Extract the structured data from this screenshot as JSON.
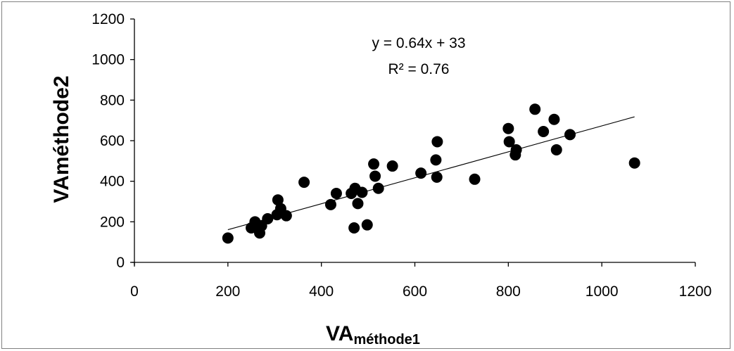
{
  "chart_data": {
    "type": "scatter",
    "xlabel": "VA",
    "xlabel_subscript": "méthode1",
    "ylabel": "VAméthode2",
    "xlim": [
      0,
      1200
    ],
    "ylim": [
      0,
      1200
    ],
    "x_ticks": [
      "0",
      "200",
      "400",
      "600",
      "800",
      "1000",
      "1200"
    ],
    "y_ticks": [
      "0",
      "200",
      "400",
      "600",
      "800",
      "1000",
      "1200"
    ],
    "grid": false,
    "legend": "none",
    "colors": {
      "points": "#000000",
      "trendline": "#000000",
      "axis": "#000000",
      "frame": "#808080"
    },
    "trendline": {
      "slope": 0.64,
      "intercept": 33,
      "x_range": [
        200,
        1070
      ],
      "equation": "y = 0.64x + 33",
      "r_squared": "R² = 0.76"
    },
    "points": [
      {
        "x": 200,
        "y": 120
      },
      {
        "x": 250,
        "y": 170
      },
      {
        "x": 258,
        "y": 200
      },
      {
        "x": 268,
        "y": 145
      },
      {
        "x": 272,
        "y": 180
      },
      {
        "x": 285,
        "y": 215
      },
      {
        "x": 305,
        "y": 235
      },
      {
        "x": 307,
        "y": 308
      },
      {
        "x": 313,
        "y": 265
      },
      {
        "x": 325,
        "y": 230
      },
      {
        "x": 363,
        "y": 395
      },
      {
        "x": 420,
        "y": 285
      },
      {
        "x": 432,
        "y": 340
      },
      {
        "x": 464,
        "y": 340
      },
      {
        "x": 470,
        "y": 170
      },
      {
        "x": 472,
        "y": 365
      },
      {
        "x": 478,
        "y": 290
      },
      {
        "x": 487,
        "y": 345
      },
      {
        "x": 498,
        "y": 185
      },
      {
        "x": 512,
        "y": 485
      },
      {
        "x": 515,
        "y": 425
      },
      {
        "x": 522,
        "y": 365
      },
      {
        "x": 552,
        "y": 475
      },
      {
        "x": 613,
        "y": 440
      },
      {
        "x": 645,
        "y": 505
      },
      {
        "x": 647,
        "y": 420
      },
      {
        "x": 648,
        "y": 595
      },
      {
        "x": 728,
        "y": 410
      },
      {
        "x": 800,
        "y": 660
      },
      {
        "x": 802,
        "y": 595
      },
      {
        "x": 815,
        "y": 530
      },
      {
        "x": 817,
        "y": 555
      },
      {
        "x": 857,
        "y": 755
      },
      {
        "x": 875,
        "y": 645
      },
      {
        "x": 898,
        "y": 705
      },
      {
        "x": 903,
        "y": 555
      },
      {
        "x": 932,
        "y": 630
      },
      {
        "x": 1070,
        "y": 490
      }
    ]
  }
}
